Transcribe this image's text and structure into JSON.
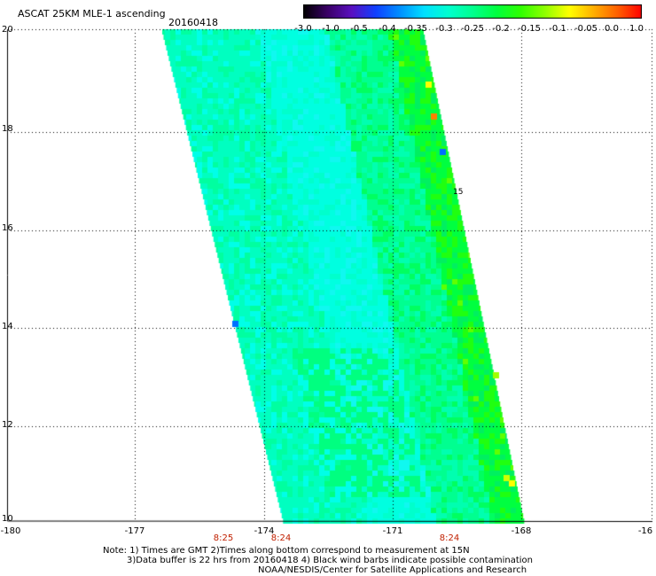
{
  "header": {
    "title": "ASCAT 25KM MLE-1 ascending",
    "date": "20160418"
  },
  "colorbar": {
    "labels": [
      "-3.0",
      "-1.0",
      "-0.5",
      "-0.4",
      "-0.35",
      "-0.3",
      "-0.25",
      "-0.2",
      "-0.15",
      "-0.1",
      "-0.05",
      "0.0",
      "1.0"
    ],
    "colors": [
      "#000000",
      "#3a0066",
      "#5a10c0",
      "#1040ff",
      "#0090ff",
      "#00e0ff",
      "#00ffd0",
      "#00ff90",
      "#00ff40",
      "#30ff00",
      "#90ff00",
      "#ffff00",
      "#ffb000",
      "#ff6000",
      "#ff0000"
    ]
  },
  "map": {
    "lat_labels": [
      "20",
      "18",
      "16",
      "14",
      "12",
      "10"
    ],
    "lon_labels": [
      "-180",
      "-177",
      "-174",
      "-171",
      "-168",
      "-16"
    ],
    "lat_range": [
      10,
      20
    ],
    "lon_range": [
      -180,
      -165
    ],
    "marker": "15"
  },
  "times": [
    "8:25",
    "8:24",
    "8:24"
  ],
  "notes": {
    "line1": "Note: 1) Times are GMT 2)Times along bottom correspond to measurement at 15N",
    "line2": "3)Data buffer is 22 hrs from 20160418 4) Black wind barbs indicate possible contamination",
    "line3": "NOAA/NESDIS/Center for Satellite Applications and Research"
  }
}
